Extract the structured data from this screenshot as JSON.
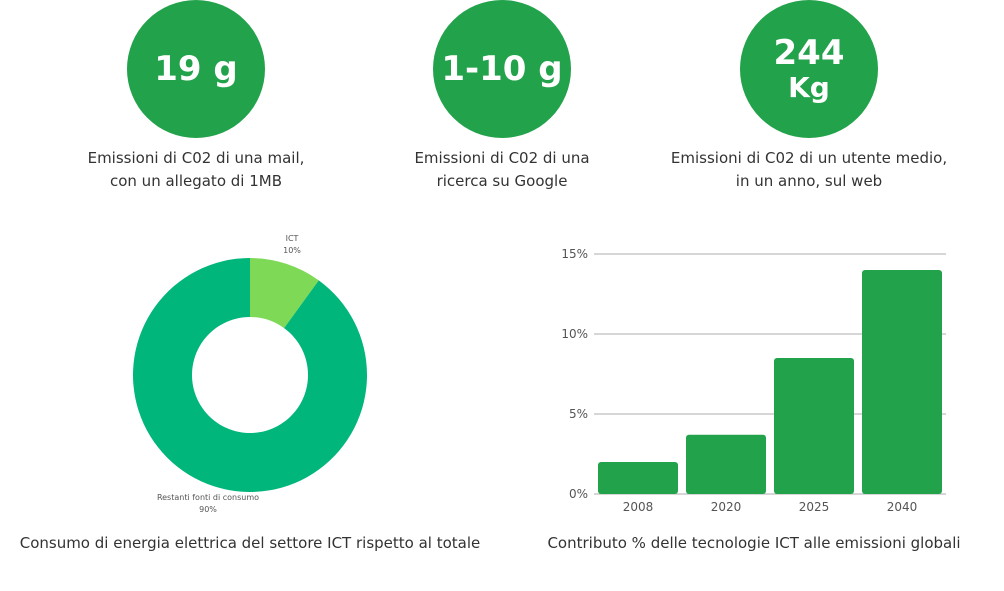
{
  "stats": [
    {
      "value_line1": "19 g",
      "value_line2": "",
      "caption": "Emissioni di C02 di una mail,\ncon un allegato di 1MB"
    },
    {
      "value_line1": "1-10 g",
      "value_line2": "",
      "caption": "Emissioni di C02 di una\nricerca su Google"
    },
    {
      "value_line1": "244",
      "value_line2": "Kg",
      "caption": "Emissioni di C02 di un utente medio,\nin un anno, sul web"
    }
  ],
  "colors": {
    "stat_circle": "#22a24a",
    "ict_slice": "#7ed957",
    "rest_slice": "#00b67a",
    "bar": "#22a24a",
    "grid": "#c8c8c8"
  },
  "chart_data": [
    {
      "type": "pie",
      "subtype": "donut",
      "title": "Consumo di energia elettrica del settore ICT rispetto al totale",
      "slices": [
        {
          "label": "ICT",
          "value": 10,
          "value_label": "10%"
        },
        {
          "label": "Restanti fonti di consumo",
          "value": 90,
          "value_label": "90%"
        }
      ]
    },
    {
      "type": "bar",
      "title": "Contributo % delle tecnologie ICT alle emissioni globali",
      "categories": [
        "2008",
        "2020",
        "2025",
        "2040"
      ],
      "values": [
        2.0,
        3.7,
        8.5,
        14.0
      ],
      "ylim": [
        0,
        15
      ],
      "yticks": [
        0,
        5,
        10,
        15
      ],
      "ytick_labels": [
        "0%",
        "5%",
        "10%",
        "15%"
      ],
      "grid": true
    }
  ]
}
